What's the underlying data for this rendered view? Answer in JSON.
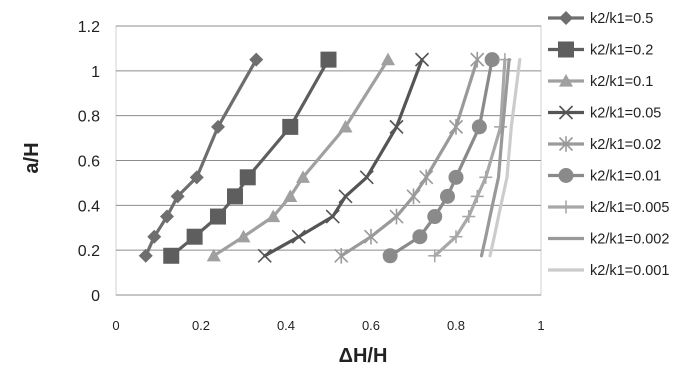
{
  "chart_data": {
    "type": "line",
    "title": "",
    "xlabel": "ΔH/H",
    "ylabel": "a/H",
    "xlim": [
      0,
      1
    ],
    "ylim": [
      0,
      1.2
    ],
    "xticks": [
      0,
      0.2,
      0.4,
      0.6,
      0.8,
      1
    ],
    "xtick_labels": [
      "0",
      "0.2",
      "0.4",
      "0.6",
      "0.8",
      "1"
    ],
    "yticks": [
      0,
      0.2,
      0.4,
      0.6,
      0.8,
      1,
      1.2
    ],
    "ytick_labels": [
      "0",
      "0.2",
      "0.4",
      "0.6",
      "0.8",
      "1",
      "1.2"
    ],
    "grid": "horizontal",
    "legend_position": "right",
    "y": [
      0.175,
      0.26,
      0.35,
      0.44,
      0.525,
      0.75,
      1.05
    ],
    "series": [
      {
        "name": "k2/k1=0.5",
        "marker": "diamond",
        "color": "#6e6e6e",
        "x": [
          0.07,
          0.09,
          0.12,
          0.145,
          0.19,
          0.24,
          0.33
        ]
      },
      {
        "name": "k2/k1=0.2",
        "marker": "square",
        "color": "#5e5e5e",
        "x": [
          0.13,
          0.185,
          0.24,
          0.28,
          0.31,
          0.41,
          0.5
        ]
      },
      {
        "name": "k2/k1=0.1",
        "marker": "triangle",
        "color": "#a0a0a0",
        "x": [
          0.23,
          0.3,
          0.37,
          0.41,
          0.44,
          0.54,
          0.64
        ]
      },
      {
        "name": "k2/k1=0.05",
        "marker": "x",
        "color": "#555555",
        "x": [
          0.35,
          0.43,
          0.51,
          0.54,
          0.59,
          0.66,
          0.72
        ]
      },
      {
        "name": "k2/k1=0.02",
        "marker": "star",
        "color": "#9a9a9a",
        "x": [
          0.53,
          0.6,
          0.66,
          0.7,
          0.73,
          0.8,
          0.85
        ]
      },
      {
        "name": "k2/k1=0.01",
        "marker": "circle",
        "color": "#8a8a8a",
        "x": [
          0.645,
          0.715,
          0.75,
          0.78,
          0.8,
          0.855,
          0.885
        ]
      },
      {
        "name": "k2/k1=0.005",
        "marker": "plus",
        "color": "#a8a8a8",
        "x": [
          0.75,
          0.8,
          0.83,
          0.85,
          0.87,
          0.905,
          0.915
        ]
      },
      {
        "name": "k2/k1=0.002",
        "marker": "none",
        "color": "#999999",
        "x": [
          0.86,
          0.87,
          0.88,
          0.89,
          0.9,
          0.91,
          0.925
        ]
      },
      {
        "name": "k2/k1=0.001",
        "marker": "none",
        "color": "#cccccc",
        "x": [
          0.88,
          0.89,
          0.9,
          0.91,
          0.92,
          0.93,
          0.95
        ]
      }
    ]
  }
}
